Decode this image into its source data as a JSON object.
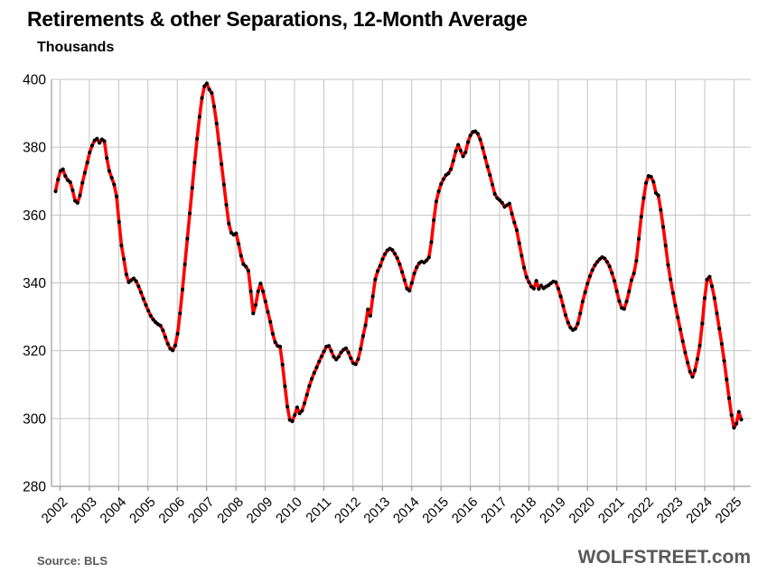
{
  "header": {
    "title": "Retirements & other Separations, 12-Month Average",
    "units_label": "Thousands"
  },
  "footer": {
    "source": "Source: BLS",
    "brand": "WOLFSTREET.com"
  },
  "styles": {
    "line_color": "#fe0000",
    "marker_color": "#000000",
    "grid_color": "#c3c3c3",
    "axis_color": "#9a9a9a",
    "tick_text_color": "#000000",
    "footer_text_color": "#595959"
  },
  "chart_data": {
    "type": "line",
    "title": "Retirements & other Separations, 12-Month Average",
    "xlabel": "",
    "ylabel": "Thousands",
    "ylim": [
      280,
      400
    ],
    "ytick_step": 20,
    "yticks": [
      280,
      300,
      320,
      340,
      360,
      380,
      400
    ],
    "x_year_labels": [
      "2002",
      "2003",
      "2004",
      "2005",
      "2006",
      "2007",
      "2008",
      "2009",
      "2010",
      "2011",
      "2012",
      "2013",
      "2014",
      "2015",
      "2016",
      "2017",
      "2018",
      "2019",
      "2020",
      "2021",
      "2022",
      "2023",
      "2024",
      "2025"
    ],
    "x_monthly_start": "2002-01",
    "x_monthly_end": "2025-06",
    "grid": true,
    "legend": "none",
    "series": [
      {
        "name": "Retirements & other separations, 12-month moving average (thousands)",
        "monthly_values": [
          367.0,
          370.5,
          373.0,
          373.5,
          371.5,
          370.3,
          369.7,
          367.3,
          364.2,
          363.6,
          365.8,
          369.5,
          372.5,
          375.5,
          378.5,
          380.5,
          382.0,
          382.5,
          381.3,
          382.3,
          381.8,
          376.8,
          373.0,
          371.0,
          369.0,
          365.5,
          358.0,
          351.0,
          347.0,
          342.5,
          340.2,
          340.8,
          341.3,
          340.5,
          339.0,
          337.2,
          335.3,
          333.5,
          331.8,
          330.3,
          329.2,
          328.4,
          327.8,
          327.4,
          326.0,
          324.0,
          322.0,
          320.6,
          320.1,
          321.5,
          325.0,
          331.0,
          338.0,
          345.5,
          353.0,
          360.5,
          368.0,
          375.5,
          382.5,
          389.0,
          394.5,
          398.0,
          398.8,
          397.0,
          396.0,
          392.0,
          387.0,
          381.0,
          375.0,
          369.0,
          363.0,
          357.5,
          354.8,
          354.2,
          354.6,
          351.5,
          348.0,
          345.5,
          344.8,
          343.6,
          337.5,
          331.0,
          333.5,
          337.5,
          339.8,
          337.5,
          334.5,
          331.4,
          328.5,
          325.0,
          322.5,
          321.4,
          321.2,
          315.9,
          309.5,
          303.5,
          299.6,
          299.2,
          301.0,
          303.3,
          301.5,
          302.3,
          304.5,
          307.0,
          309.6,
          311.7,
          313.5,
          315.1,
          316.8,
          318.3,
          319.8,
          321.2,
          321.4,
          319.9,
          318.2,
          317.4,
          318.2,
          319.5,
          320.3,
          320.7,
          319.5,
          317.8,
          316.3,
          316.0,
          317.5,
          320.5,
          324.3,
          327.5,
          332.2,
          330.3,
          336.0,
          341.0,
          343.5,
          345.0,
          347.0,
          348.5,
          349.6,
          350.1,
          349.7,
          348.6,
          347.3,
          345.5,
          343.2,
          340.8,
          338.3,
          337.7,
          340.0,
          342.8,
          344.6,
          345.8,
          346.3,
          346.0,
          346.6,
          347.5,
          352.0,
          358.5,
          364.0,
          367.0,
          369.2,
          370.6,
          371.8,
          372.3,
          373.5,
          376.0,
          378.8,
          380.7,
          379.0,
          377.3,
          378.5,
          381.5,
          383.5,
          384.5,
          384.7,
          384.0,
          382.3,
          379.8,
          377.0,
          374.3,
          371.8,
          369.0,
          366.2,
          365.0,
          364.4,
          363.6,
          362.4,
          362.9,
          363.4,
          360.4,
          357.8,
          355.5,
          351.7,
          348.0,
          344.5,
          341.7,
          340.2,
          338.9,
          338.3,
          340.6,
          338.2,
          339.2,
          338.4,
          338.9,
          339.3,
          339.9,
          340.4,
          340.2,
          338.3,
          336.0,
          333.2,
          330.5,
          328.3,
          326.8,
          326.1,
          326.5,
          328.0,
          331.0,
          334.5,
          337.2,
          339.8,
          342.0,
          343.8,
          345.2,
          346.2,
          347.0,
          347.6,
          347.2,
          346.2,
          344.9,
          342.9,
          340.6,
          337.5,
          334.6,
          332.6,
          332.3,
          334.5,
          337.5,
          340.8,
          342.8,
          346.5,
          353.0,
          359.5,
          365.0,
          369.5,
          371.5,
          371.3,
          369.8,
          366.5,
          365.8,
          361.5,
          356.5,
          351.0,
          345.3,
          341.0,
          337.0,
          333.3,
          329.8,
          326.3,
          322.8,
          319.5,
          316.5,
          313.8,
          312.3,
          314.2,
          317.5,
          321.5,
          328.0,
          335.5,
          341.0,
          341.8,
          339.0,
          335.5,
          331.0,
          326.5,
          322.0,
          317.0,
          311.5,
          306.0,
          301.0,
          297.3,
          298.5,
          302.0,
          299.7
        ]
      }
    ]
  }
}
